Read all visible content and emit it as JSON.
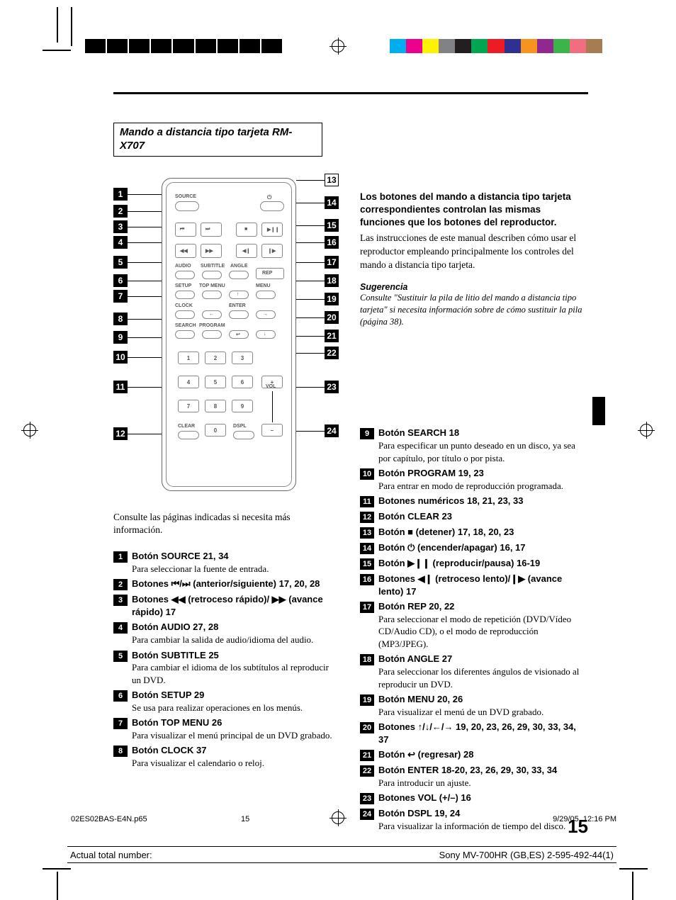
{
  "colors": {
    "text": "#000000",
    "background": "#ffffff",
    "remote_border": "#888888",
    "color_bar": [
      "#00aeef",
      "#ec008c",
      "#fff200",
      "#808285",
      "#231f20",
      "#00a651",
      "#ed1c24",
      "#2e3192",
      "#f7941d",
      "#92278f",
      "#39b54a",
      "#f26d7d",
      "#a67c52"
    ]
  },
  "title": "Mando a distancia tipo tarjeta RM-X707",
  "intro": {
    "bold": "Los botones del mando a distancia tipo tarjeta correspondientes controlan las mismas funciones que los botones del reproductor.",
    "body": "Las instrucciones de este manual describen cómo usar el reproductor empleando principalmente los controles del mando a distancia tipo tarjeta."
  },
  "tip": {
    "heading": "Sugerencia",
    "body": "Consulte \"Sustituir la pila de litio del mando a distancia tipo tarjeta\" si necesita información sobre de cómo sustituir la pila (página 38)."
  },
  "remote": {
    "labels": {
      "source": "SOURCE",
      "audio": "AUDIO",
      "subtitle": "SUBTITLE",
      "angle": "ANGLE",
      "rep": "REP",
      "setup": "SETUP",
      "topmenu": "TOP MENU",
      "menu": "MENU",
      "clock": "CLOCK",
      "enter": "ENTER",
      "search": "SEARCH",
      "program": "PROGRAM",
      "clear": "CLEAR",
      "dspl": "DSPL",
      "vol": "VOL",
      "power": "⏻"
    },
    "numpad": [
      "1",
      "2",
      "3",
      "4",
      "5",
      "6",
      "7",
      "8",
      "9",
      "0",
      "+",
      "–"
    ]
  },
  "consult": "Consulte las páginas indicadas si necesita más información.",
  "legend_left": [
    {
      "n": "1",
      "title": "Botón SOURCE  21, 34",
      "desc": "Para seleccionar la fuente de entrada."
    },
    {
      "n": "2",
      "title": "Botones ⏮/⏭ (anterior/siguiente) 17, 20, 28",
      "desc": ""
    },
    {
      "n": "3",
      "title": "Botones ◀◀ (retroceso rápido)/ ▶▶ (avance rápido)  17",
      "desc": ""
    },
    {
      "n": "4",
      "title": "Botón AUDIO 27, 28",
      "desc": "Para cambiar la salida de audio/idioma del audio."
    },
    {
      "n": "5",
      "title": "Botón SUBTITLE  25",
      "desc": "Para cambiar el idioma de los subtítulos al reproducir un DVD."
    },
    {
      "n": "6",
      "title": "Botón SETUP  29",
      "desc": "Se usa para realizar operaciones en los menús."
    },
    {
      "n": "7",
      "title": "Botón TOP MENU  26",
      "desc": "Para visualizar el menú principal de un DVD grabado."
    },
    {
      "n": "8",
      "title": "Botón CLOCK  37",
      "desc": "Para visualizar el calendario o reloj."
    }
  ],
  "legend_right": [
    {
      "n": "9",
      "title": "Botón SEARCH  18",
      "desc": "Para especificar un punto deseado en un disco, ya sea por capítulo, por título o por pista."
    },
    {
      "n": "10",
      "title": "Botón PROGRAM  19, 23",
      "desc": "Para entrar en modo de reproducción programada."
    },
    {
      "n": "11",
      "title": "Botones numéricos  18, 21, 23, 33",
      "desc": ""
    },
    {
      "n": "12",
      "title": "Botón CLEAR 23",
      "desc": ""
    },
    {
      "n": "13",
      "title": "Botón ■ (detener)  17, 18, 20, 23",
      "desc": ""
    },
    {
      "n": "14",
      "title": "Botón ⏻ (encender/apagar) 16, 17",
      "desc": ""
    },
    {
      "n": "15",
      "title": "Botón ▶❙❙ (reproducir/pausa)  16-19",
      "desc": ""
    },
    {
      "n": "16",
      "title": "Botones ◀❙ (retroceso lento)/❙▶ (avance lento)  17",
      "desc": ""
    },
    {
      "n": "17",
      "title": "Botón REP  20, 22",
      "desc": "Para seleccionar el modo de repetición (DVD/Vídeo CD/Audio CD), o el modo de reproducción (MP3/JPEG)."
    },
    {
      "n": "18",
      "title": "Botón ANGLE  27",
      "desc": "Para seleccionar los diferentes ángulos de visionado al reproducir un DVD."
    },
    {
      "n": "19",
      "title": "Botón MENU 20, 26",
      "desc": "Para visualizar el menú de un DVD grabado."
    },
    {
      "n": "20",
      "title": "Botones ↑/↓/←/→  19, 20, 23, 26, 29, 30, 33, 34, 37",
      "desc": ""
    },
    {
      "n": "21",
      "title": "Botón ↩ (regresar)  28",
      "desc": ""
    },
    {
      "n": "22",
      "title": "Botón ENTER  18-20, 23, 26, 29, 30, 33, 34",
      "desc": "Para introducir un ajuste."
    },
    {
      "n": "23",
      "title": "Botones VOL (+/–)  16",
      "desc": ""
    },
    {
      "n": "24",
      "title": "Botón DSPL 19, 24",
      "desc": "Para visualizar la información de tiempo del disco."
    }
  ],
  "page_number": "15",
  "footer_meta": {
    "file": "02ES02BAS-E4N.p65",
    "pnum": "15",
    "date": "9/29/05, 12:16 PM"
  },
  "footer": {
    "left": "Actual total number:",
    "right": "Sony MV-700HR (GB,ES) 2-595-492-44(1)"
  }
}
